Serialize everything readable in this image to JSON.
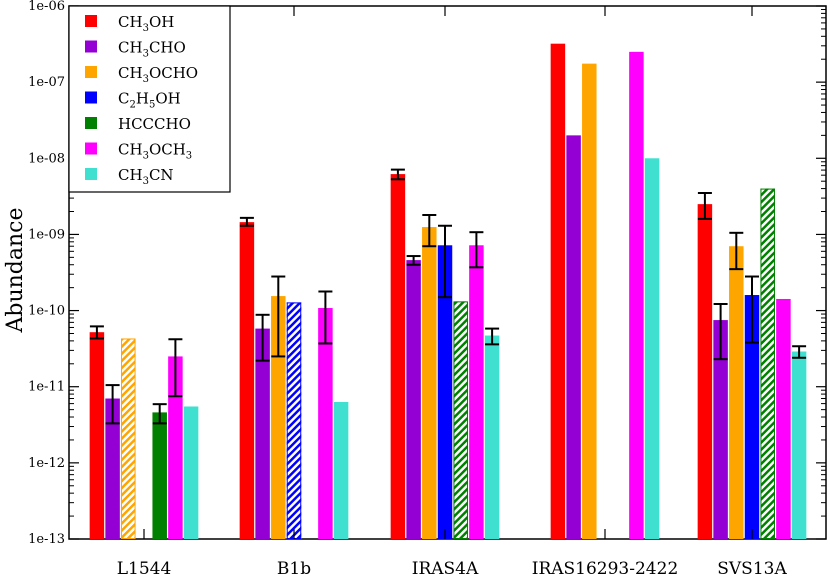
{
  "chart_data": {
    "type": "bar",
    "scale": "log",
    "title": "",
    "xlabel": "",
    "ylabel": "Abundance",
    "ylim": [
      1e-13,
      1e-06
    ],
    "y_ticks": [
      {
        "value": 1e-13,
        "label": "1e-13"
      },
      {
        "value": 1e-12,
        "label": "1e-12"
      },
      {
        "value": 1e-11,
        "label": "1e-11"
      },
      {
        "value": 1e-10,
        "label": "1e-10"
      },
      {
        "value": 1e-09,
        "label": "1e-09"
      },
      {
        "value": 1e-08,
        "label": "1e-08"
      },
      {
        "value": 1e-07,
        "label": "1e-07"
      },
      {
        "value": 1e-06,
        "label": "1e-06"
      }
    ],
    "categories": [
      "L1544",
      "B1b",
      "IRAS4A",
      "IRAS16293-2422",
      "SVS13A"
    ],
    "legend_position": "top-left",
    "series": [
      {
        "name": "CH3OH",
        "label": {
          "main": "CH",
          "sub": "3",
          "rest": "OH"
        },
        "color": "#ff0000",
        "values": [
          5.2e-11,
          1.45e-09,
          6.2e-09,
          3.2e-07,
          2.5e-09
        ],
        "err_low": [
          4.3e-11,
          1.3e-09,
          5.3e-09,
          null,
          1.6e-09
        ],
        "err_high": [
          6.2e-11,
          1.65e-09,
          7.1e-09,
          null,
          3.5e-09
        ],
        "hatched": [
          false,
          false,
          false,
          false,
          false
        ]
      },
      {
        "name": "CH3CHO",
        "label": {
          "main": "CH",
          "sub": "3",
          "rest": "CHO"
        },
        "color": "#9400d3",
        "values": [
          7e-12,
          5.8e-11,
          4.6e-10,
          2e-08,
          7.5e-11
        ],
        "err_low": [
          3.3e-12,
          2.2e-11,
          4e-10,
          null,
          2.3e-11
        ],
        "err_high": [
          1.05e-11,
          8.8e-11,
          5.2e-10,
          null,
          1.22e-10
        ],
        "hatched": [
          false,
          false,
          false,
          false,
          false
        ]
      },
      {
        "name": "CH3OCHO",
        "label": {
          "main": "CH",
          "sub": "3",
          "rest": "OCHO"
        },
        "color": "#ffa500",
        "values": [
          4.3e-11,
          1.55e-10,
          1.25e-09,
          1.75e-07,
          7e-10
        ],
        "err_low": [
          null,
          2.5e-11,
          7e-10,
          null,
          3.5e-10
        ],
        "err_high": [
          null,
          2.8e-10,
          1.8e-09,
          null,
          1.05e-09
        ],
        "hatched": [
          true,
          false,
          false,
          false,
          false
        ]
      },
      {
        "name": "C2H5OH",
        "label": {
          "main": "C",
          "sub": "2",
          "rest": "H",
          "sub2": "5",
          "rest2": "OH"
        },
        "color": "#0000ff",
        "values": [
          null,
          1.28e-10,
          7.2e-10,
          null,
          1.6e-10
        ],
        "err_low": [
          null,
          null,
          1.5e-10,
          null,
          3.8e-11
        ],
        "err_high": [
          null,
          null,
          1.3e-09,
          null,
          2.8e-10
        ],
        "hatched": [
          false,
          true,
          false,
          false,
          false
        ]
      },
      {
        "name": "HCCCHO",
        "label": {
          "main": "HCCCHO"
        },
        "color": "#008000",
        "values": [
          4.6e-12,
          null,
          1.32e-10,
          null,
          4e-09
        ],
        "err_low": [
          3.3e-12,
          null,
          null,
          null,
          null
        ],
        "err_high": [
          5.9e-12,
          null,
          null,
          null,
          null
        ],
        "hatched": [
          false,
          false,
          true,
          false,
          true
        ]
      },
      {
        "name": "CH3OCH3",
        "label": {
          "main": "CH",
          "sub": "3",
          "rest": "OCH",
          "sub2": "3"
        },
        "color": "#ff00ff",
        "values": [
          2.5e-11,
          1.08e-10,
          7.2e-10,
          2.5e-07,
          1.42e-10
        ],
        "err_low": [
          7.5e-12,
          3.7e-11,
          3.7e-10,
          null,
          null
        ],
        "err_high": [
          4.2e-11,
          1.78e-10,
          1.07e-09,
          null,
          null
        ],
        "hatched": [
          false,
          false,
          false,
          false,
          false
        ]
      },
      {
        "name": "CH3CN",
        "label": {
          "main": "CH",
          "sub": "3",
          "rest": "CN"
        },
        "color": "#40e0d0",
        "values": [
          5.5e-12,
          6.3e-12,
          4.7e-11,
          1e-08,
          2.9e-11
        ],
        "err_low": [
          null,
          null,
          3.6e-11,
          null,
          2.4e-11
        ],
        "err_high": [
          null,
          null,
          5.8e-11,
          null,
          3.4e-11
        ],
        "hatched": [
          false,
          false,
          false,
          false,
          false
        ]
      }
    ]
  }
}
